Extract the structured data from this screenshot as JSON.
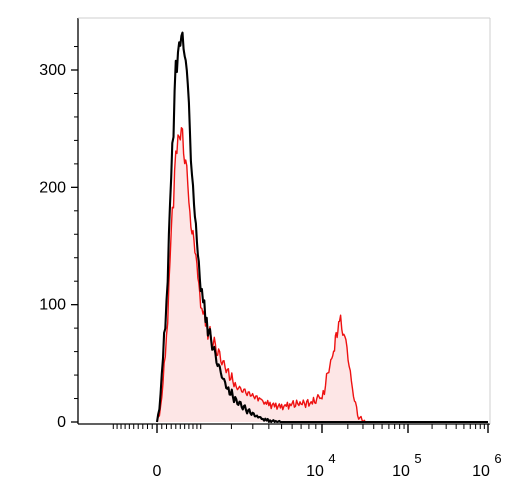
{
  "chart_data": {
    "type": "area",
    "title": "",
    "xlabel": "",
    "ylabel": "",
    "x_scale": "biexponential",
    "x_tick_labels": [
      {
        "base": "0",
        "exp": ""
      },
      {
        "base": "10",
        "exp": "4"
      },
      {
        "base": "10",
        "exp": "5"
      },
      {
        "base": "10",
        "exp": "6"
      }
    ],
    "y_tick_labels": [
      "0",
      "100",
      "200",
      "300"
    ],
    "ylim": [
      0,
      340
    ],
    "grid": false,
    "legend": "none",
    "series": [
      {
        "color": "#000000",
        "fill": "none",
        "x": [
          0,
          50,
          100,
          200,
          300,
          400,
          500,
          600,
          700,
          800,
          900,
          1000,
          1200,
          1500,
          1800,
          2200,
          2700,
          3300,
          4000,
          5000,
          7000,
          10000,
          20000,
          50000,
          100000,
          1000000
        ],
        "values": [
          0,
          12,
          40,
          100,
          210,
          300,
          328,
          320,
          270,
          200,
          150,
          115,
          80,
          50,
          30,
          18,
          10,
          4,
          1,
          0,
          0,
          0,
          0,
          0,
          0,
          0
        ]
      },
      {
        "color": "#ee1111",
        "fill": "#fde6e6",
        "x": [
          0,
          50,
          100,
          200,
          300,
          400,
          500,
          600,
          700,
          800,
          900,
          1000,
          1200,
          1500,
          1800,
          2200,
          2700,
          3300,
          4000,
          5000,
          6000,
          7000,
          8000,
          9000,
          10000,
          11000,
          12000,
          13000,
          14000,
          15000,
          16000,
          17000,
          19000,
          22000,
          26000,
          32000,
          50000,
          1000000
        ],
        "values": [
          0,
          6,
          22,
          70,
          160,
          228,
          250,
          230,
          190,
          160,
          128,
          100,
          78,
          60,
          45,
          30,
          25,
          20,
          15,
          13,
          15,
          16,
          16,
          18,
          22,
          30,
          48,
          58,
          66,
          75,
          86,
          84,
          68,
          35,
          5,
          0,
          0,
          0
        ]
      }
    ]
  }
}
